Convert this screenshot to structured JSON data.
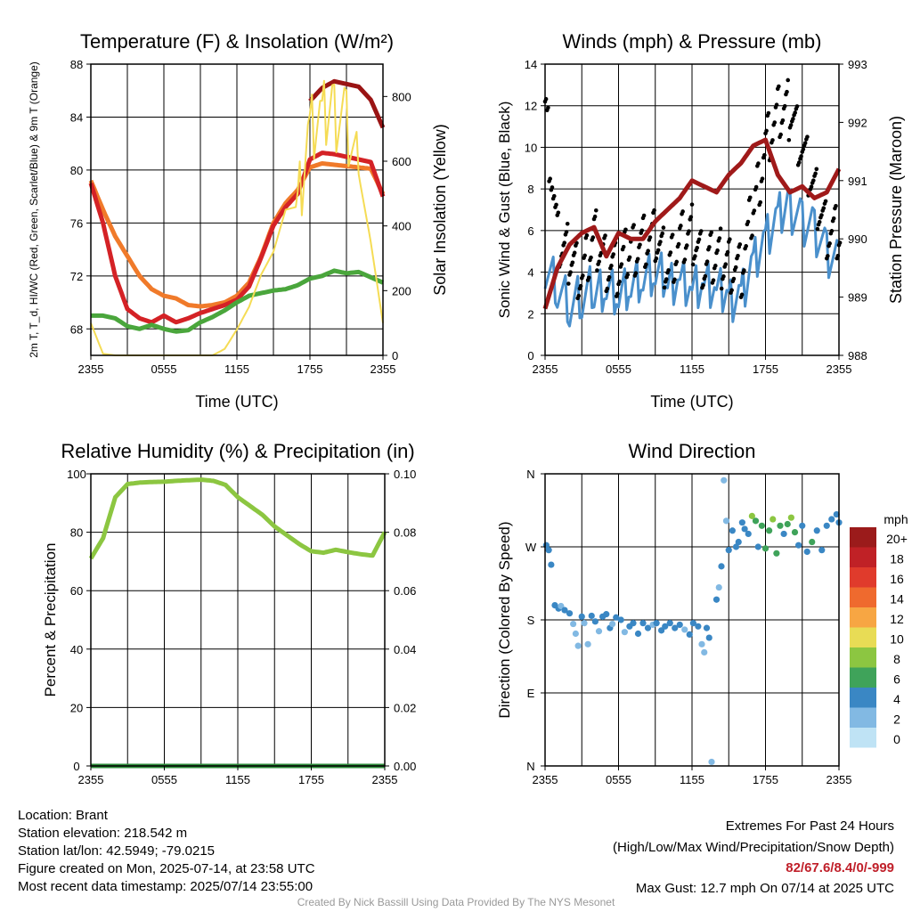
{
  "chart_data": [
    {
      "type": "line",
      "title": "Temperature (F) & Insolation (W/m²)",
      "xlabel": "Time (UTC)",
      "ylabel": "2m T, T_d, HI/WC (Red, Green, Scarlet/Blue) & 9m T (Orange)",
      "y2label": "Solar Insolation (Yellow)",
      "xticks": [
        "2355",
        "0555",
        "1155",
        "1755",
        "2355"
      ],
      "ylim": [
        66,
        88
      ],
      "yticks": [
        68,
        72,
        76,
        80,
        84,
        88
      ],
      "y2lim": [
        0,
        900
      ],
      "y2ticks": [
        0,
        200,
        400,
        600,
        800
      ],
      "x": [
        0,
        1,
        2,
        3,
        4,
        5,
        6,
        7,
        8,
        9,
        10,
        11,
        12,
        13,
        14,
        15,
        16,
        17,
        18,
        19,
        20,
        21,
        22,
        23,
        24
      ],
      "series": [
        {
          "color": "#f07a2a",
          "axis": "left",
          "values": [
            79.2,
            77,
            75,
            73.5,
            72,
            71,
            70.5,
            70.3,
            69.8,
            69.7,
            69.8,
            70,
            70.5,
            71.5,
            73.5,
            76,
            77.5,
            78.5,
            80.2,
            80.5,
            80.4,
            80.3,
            80.2,
            80.1,
            78.2
          ]
        },
        {
          "color": "#d42226",
          "axis": "left",
          "values": [
            79,
            76,
            72,
            69.5,
            68.8,
            68.5,
            69,
            68.5,
            68.8,
            69.2,
            69.5,
            69.8,
            70.2,
            71.2,
            73.4,
            75.8,
            77.2,
            78.2,
            80.8,
            81.3,
            81.2,
            81,
            80.8,
            80.6,
            78
          ]
        },
        {
          "color": "#4aa63c",
          "axis": "left",
          "values": [
            69,
            69,
            68.8,
            68.2,
            68,
            68.3,
            68,
            67.8,
            67.9,
            68.5,
            68.9,
            69.4,
            70,
            70.5,
            70.7,
            70.9,
            71,
            71.3,
            71.8,
            72,
            72.4,
            72.2,
            72.3,
            71.9,
            71.5
          ]
        },
        {
          "color": "#9a1414",
          "axis": "left",
          "values": [
            null,
            null,
            null,
            null,
            null,
            null,
            null,
            null,
            null,
            null,
            null,
            null,
            null,
            null,
            null,
            null,
            null,
            null,
            85.2,
            86.2,
            86.7,
            86.5,
            86.3,
            85.3,
            83.2
          ]
        },
        {
          "color": "#f5dc55",
          "axis": "right",
          "values": [
            100,
            5,
            0,
            0,
            0,
            0,
            0,
            0,
            0,
            0,
            0,
            20,
            80,
            150,
            250,
            320,
            450,
            460,
            690,
            720,
            760,
            730,
            560,
            350,
            100
          ]
        }
      ]
    },
    {
      "type": "line",
      "title": "Winds (mph) & Pressure (mb)",
      "xlabel": "Time (UTC)",
      "ylabel": "Sonic Wind & Gust (Blue, Black)",
      "y2label": "Station Pressure (Maroon)",
      "xticks": [
        "2355",
        "0555",
        "1155",
        "1755",
        "2355"
      ],
      "ylim": [
        0,
        14
      ],
      "yticks": [
        0,
        2,
        4,
        6,
        8,
        10,
        12,
        14
      ],
      "y2lim": [
        988,
        993
      ],
      "y2ticks": [
        988,
        989,
        990,
        991,
        992,
        993
      ],
      "x": [
        0,
        1,
        2,
        3,
        4,
        5,
        6,
        7,
        8,
        9,
        10,
        11,
        12,
        13,
        14,
        15,
        16,
        17,
        18,
        19,
        20,
        21,
        22,
        23,
        24
      ],
      "series": [
        {
          "color": "#4a90cc",
          "axis": "left",
          "values": [
            4.5,
            3.5,
            2.5,
            2.8,
            3.2,
            3.5,
            3.0,
            3.4,
            3.6,
            3.8,
            3.5,
            3.8,
            3.2,
            3.4,
            3.0,
            2.8,
            3.0,
            4.5,
            5.5,
            6.5,
            7.2,
            6.5,
            6.0,
            4.8,
            4.2
          ]
        },
        {
          "color": "#000000",
          "axis": "left",
          "values": [
            11.8,
            5.5,
            4.8,
            3.8,
            5.8,
            4.5,
            4.0,
            5.2,
            5.5,
            5.6,
            4.2,
            5.5,
            5.8,
            4.4,
            4.8,
            4.5,
            4.0,
            7.2,
            10.2,
            11.5,
            11.8,
            9.8,
            7.8,
            6.0,
            5.8
          ]
        },
        {
          "color": "#a01a1a",
          "axis": "right",
          "values": [
            988.8,
            989.5,
            989.9,
            990.1,
            990.2,
            989.7,
            990.1,
            990.0,
            990.0,
            990.3,
            990.5,
            990.7,
            991.0,
            990.9,
            990.8,
            991.1,
            991.3,
            991.6,
            991.7,
            991.1,
            990.8,
            990.9,
            990.7,
            990.8,
            991.2
          ]
        }
      ]
    },
    {
      "type": "line",
      "title": "Relative Humidity (%) & Precipitation (in)",
      "xlabel": "",
      "ylabel": "Percent & Precipitation",
      "xticks": [
        "2355",
        "0555",
        "1155",
        "1755",
        "2355"
      ],
      "ylim": [
        0,
        100
      ],
      "yticks": [
        0,
        20,
        40,
        60,
        80,
        100
      ],
      "y2lim": [
        0,
        0.1
      ],
      "y2ticks": [
        "0.00",
        "0.02",
        "0.04",
        "0.06",
        "0.08",
        "0.10"
      ],
      "x": [
        0,
        1,
        2,
        3,
        4,
        5,
        6,
        7,
        8,
        9,
        10,
        11,
        12,
        13,
        14,
        15,
        16,
        17,
        18,
        19,
        20,
        21,
        22,
        23,
        24
      ],
      "series": [
        {
          "color": "#8cc641",
          "axis": "left",
          "values": [
            71,
            78,
            92,
            96.5,
            97,
            97.2,
            97.3,
            97.6,
            97.8,
            98,
            97.6,
            96.2,
            92,
            89,
            86,
            82,
            79,
            76,
            73.5,
            73,
            74,
            73.2,
            72.5,
            72,
            80
          ]
        },
        {
          "color": "#2e8b3a",
          "axis": "right",
          "values": [
            0,
            0,
            0,
            0,
            0,
            0,
            0,
            0,
            0,
            0,
            0,
            0,
            0,
            0,
            0,
            0,
            0,
            0,
            0,
            0,
            0,
            0,
            0,
            0,
            0
          ]
        }
      ]
    },
    {
      "type": "scatter",
      "title": "Wind Direction",
      "xlabel": "",
      "ylabel": "Direction (Colored By Speed)",
      "xticks": [
        "2355",
        "0555",
        "1155",
        "1755",
        "2355"
      ],
      "yticks": [
        "N",
        "E",
        "S",
        "W",
        "N"
      ],
      "ylim": [
        0,
        360
      ],
      "legend_title": "mph",
      "legend_labels": [
        "20+",
        "18",
        "16",
        "14",
        "12",
        "10",
        "8",
        "6",
        "4",
        "2",
        "0"
      ],
      "legend_colors": [
        "#9b1b1b",
        "#c02126",
        "#e03b2c",
        "#ef6a2e",
        "#f7a643",
        "#e8dc55",
        "#8cc641",
        "#3fa35a",
        "#3a87c4",
        "#82b9e3",
        "#bfe3f5"
      ],
      "points": [
        {
          "x": 0.1,
          "y": 272,
          "s": 4
        },
        {
          "x": 0.3,
          "y": 266,
          "s": 4
        },
        {
          "x": 0.5,
          "y": 248,
          "s": 4
        },
        {
          "x": 0.8,
          "y": 198,
          "s": 4
        },
        {
          "x": 1.1,
          "y": 194,
          "s": 4
        },
        {
          "x": 1.3,
          "y": 197,
          "s": 2
        },
        {
          "x": 1.6,
          "y": 192,
          "s": 4
        },
        {
          "x": 2.0,
          "y": 188,
          "s": 4
        },
        {
          "x": 2.3,
          "y": 175,
          "s": 2
        },
        {
          "x": 2.5,
          "y": 163,
          "s": 2
        },
        {
          "x": 2.7,
          "y": 148,
          "s": 2
        },
        {
          "x": 3.0,
          "y": 184,
          "s": 4
        },
        {
          "x": 3.2,
          "y": 176,
          "s": 2
        },
        {
          "x": 3.5,
          "y": 150,
          "s": 2
        },
        {
          "x": 3.8,
          "y": 185,
          "s": 4
        },
        {
          "x": 4.1,
          "y": 178,
          "s": 4
        },
        {
          "x": 4.4,
          "y": 166,
          "s": 2
        },
        {
          "x": 4.7,
          "y": 184,
          "s": 4
        },
        {
          "x": 5.0,
          "y": 187,
          "s": 4
        },
        {
          "x": 5.3,
          "y": 170,
          "s": 4
        },
        {
          "x": 5.5,
          "y": 175,
          "s": 2
        },
        {
          "x": 5.8,
          "y": 183,
          "s": 4
        },
        {
          "x": 6.2,
          "y": 180,
          "s": 4
        },
        {
          "x": 6.5,
          "y": 165,
          "s": 2
        },
        {
          "x": 6.9,
          "y": 172,
          "s": 4
        },
        {
          "x": 7.2,
          "y": 176,
          "s": 4
        },
        {
          "x": 7.6,
          "y": 163,
          "s": 4
        },
        {
          "x": 8.0,
          "y": 176,
          "s": 4
        },
        {
          "x": 8.4,
          "y": 170,
          "s": 4
        },
        {
          "x": 8.8,
          "y": 174,
          "s": 2
        },
        {
          "x": 9.1,
          "y": 176,
          "s": 4
        },
        {
          "x": 9.5,
          "y": 167,
          "s": 4
        },
        {
          "x": 9.8,
          "y": 172,
          "s": 4
        },
        {
          "x": 10.2,
          "y": 176,
          "s": 4
        },
        {
          "x": 10.6,
          "y": 170,
          "s": 4
        },
        {
          "x": 11.0,
          "y": 174,
          "s": 4
        },
        {
          "x": 11.4,
          "y": 168,
          "s": 2
        },
        {
          "x": 11.8,
          "y": 162,
          "s": 4
        },
        {
          "x": 12.1,
          "y": 176,
          "s": 4
        },
        {
          "x": 12.5,
          "y": 172,
          "s": 4
        },
        {
          "x": 12.8,
          "y": 150,
          "s": 2
        },
        {
          "x": 13.0,
          "y": 140,
          "s": 2
        },
        {
          "x": 13.2,
          "y": 170,
          "s": 4
        },
        {
          "x": 13.4,
          "y": 158,
          "s": 4
        },
        {
          "x": 13.6,
          "y": 5,
          "s": 2
        },
        {
          "x": 14.0,
          "y": 205,
          "s": 4
        },
        {
          "x": 14.2,
          "y": 220,
          "s": 2
        },
        {
          "x": 14.4,
          "y": 246,
          "s": 4
        },
        {
          "x": 14.6,
          "y": 352,
          "s": 2
        },
        {
          "x": 14.8,
          "y": 302,
          "s": 2
        },
        {
          "x": 15.0,
          "y": 266,
          "s": 4
        },
        {
          "x": 15.3,
          "y": 290,
          "s": 4
        },
        {
          "x": 15.6,
          "y": 270,
          "s": 4
        },
        {
          "x": 15.8,
          "y": 276,
          "s": 4
        },
        {
          "x": 16.1,
          "y": 300,
          "s": 4
        },
        {
          "x": 16.3,
          "y": 292,
          "s": 4
        },
        {
          "x": 16.6,
          "y": 286,
          "s": 4
        },
        {
          "x": 16.9,
          "y": 308,
          "s": 8
        },
        {
          "x": 17.2,
          "y": 302,
          "s": 6
        },
        {
          "x": 17.4,
          "y": 270,
          "s": 4
        },
        {
          "x": 17.7,
          "y": 296,
          "s": 6
        },
        {
          "x": 18.0,
          "y": 268,
          "s": 6
        },
        {
          "x": 18.3,
          "y": 290,
          "s": 6
        },
        {
          "x": 18.6,
          "y": 304,
          "s": 8
        },
        {
          "x": 18.9,
          "y": 262,
          "s": 6
        },
        {
          "x": 19.2,
          "y": 296,
          "s": 6
        },
        {
          "x": 19.5,
          "y": 286,
          "s": 4
        },
        {
          "x": 19.8,
          "y": 298,
          "s": 6
        },
        {
          "x": 20.1,
          "y": 306,
          "s": 8
        },
        {
          "x": 20.4,
          "y": 288,
          "s": 6
        },
        {
          "x": 20.7,
          "y": 272,
          "s": 4
        },
        {
          "x": 21.0,
          "y": 296,
          "s": 4
        },
        {
          "x": 21.4,
          "y": 264,
          "s": 4
        },
        {
          "x": 21.8,
          "y": 276,
          "s": 6
        },
        {
          "x": 22.2,
          "y": 290,
          "s": 4
        },
        {
          "x": 22.6,
          "y": 266,
          "s": 4
        },
        {
          "x": 23.0,
          "y": 296,
          "s": 4
        },
        {
          "x": 23.4,
          "y": 304,
          "s": 4
        },
        {
          "x": 23.8,
          "y": 310,
          "s": 4
        },
        {
          "x": 24.0,
          "y": 300,
          "s": 4
        }
      ]
    }
  ],
  "footer": {
    "location": "Location: Brant",
    "elevation": "Station elevation: 218.542 m",
    "latlon": "Station lat/lon: 42.5949; -79.0215",
    "created": "Figure created on Mon, 2025-07-14, at 23:58 UTC",
    "recent": "Most recent data timestamp: 2025/07/14 23:55:00",
    "extremes_title": "Extremes For Past 24 Hours",
    "extremes_fields": "(High/Low/Max Wind/Precipitation/Snow Depth)",
    "extremes_values": "82/67.6/8.4/0/-999",
    "max_gust": "Max Gust: 12.7 mph On 07/14 at 2025 UTC",
    "credit": "Created By Nick Bassill Using Data Provided By The NYS Mesonet"
  }
}
